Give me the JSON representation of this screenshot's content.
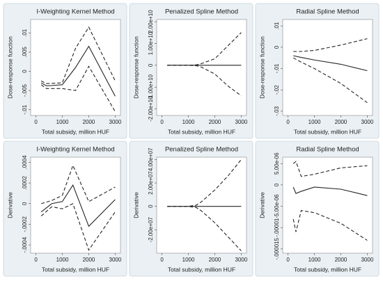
{
  "chart_data": [
    {
      "type": "line",
      "title": "I-Weighting Kernel Method",
      "ylabel": "Dose-response function",
      "xlabel": "Total subsidy, million HUF",
      "x": [
        200,
        400,
        1000,
        1500,
        2000,
        3000
      ],
      "xlim": [
        -200,
        3200
      ],
      "xticks": [
        0,
        1000,
        2000,
        3000
      ],
      "ylim": [
        -0.0115,
        0.0135
      ],
      "yticks": [
        {
          "value": -0.01,
          "label": "-.01"
        },
        {
          "value": -0.005,
          "label": "-.005"
        },
        0,
        {
          "value": 0.005,
          "label": ".005"
        },
        {
          "value": 0.01,
          "label": ".01"
        }
      ],
      "series": [
        {
          "color": "#222222",
          "style": "solid",
          "values": [
            -0.003,
            -0.0038,
            -0.0035,
            0.001,
            0.0065,
            -0.0065
          ]
        },
        {
          "color": "#222222",
          "style": "dashed",
          "values": [
            -0.0025,
            -0.0032,
            -0.003,
            0.006,
            0.0115,
            -0.0025
          ]
        },
        {
          "color": "#222222",
          "style": "dashed",
          "values": [
            -0.0035,
            -0.0045,
            -0.0045,
            -0.005,
            0.0013,
            -0.0105
          ]
        }
      ]
    },
    {
      "type": "line",
      "title": "Penalized Spline Method",
      "ylabel": "Dose-response function",
      "xlabel": "Total subsidy, million HUF",
      "x": [
        200,
        1000,
        1300,
        1500,
        2000,
        2500,
        3000
      ],
      "xlim": [
        -200,
        3200
      ],
      "xticks": [
        0,
        1000,
        2000,
        3000
      ],
      "ylim": [
        -23000000000,
        21000000000
      ],
      "yticks": [
        {
          "value": -20000000000,
          "label": "-2.00e+10"
        },
        {
          "value": -10000000000,
          "label": "-1.00e+10"
        },
        0,
        {
          "value": 10000000000,
          "label": "1.00e+10"
        },
        {
          "value": 20000000000,
          "label": "2.00e+10"
        }
      ],
      "series": [
        {
          "color": "#222222",
          "style": "solid",
          "values": [
            0,
            0,
            0,
            0,
            0,
            0,
            0
          ]
        },
        {
          "color": "#222222",
          "style": "dashed",
          "values": [
            0,
            0,
            200000000,
            800000000,
            3000000000,
            9000000000,
            15000000000
          ]
        },
        {
          "color": "#222222",
          "style": "dashed",
          "values": [
            0,
            0,
            -200000000,
            -900000000,
            -4000000000,
            -9500000000,
            -14000000000
          ]
        }
      ]
    },
    {
      "type": "line",
      "title": "Radial Spline Method",
      "ylabel": "Dose-response function",
      "xlabel": "Total subsidy, million HUF",
      "x": [
        200,
        500,
        1000,
        2000,
        3000
      ],
      "xlim": [
        -200,
        3200
      ],
      "xticks": [
        0,
        1000,
        2000,
        3000
      ],
      "ylim": [
        -0.032,
        0.013
      ],
      "yticks": [
        {
          "value": -0.03,
          "label": "-.03"
        },
        {
          "value": -0.02,
          "label": "-.02"
        },
        {
          "value": -0.01,
          "label": "-.01"
        },
        0,
        {
          "value": 0.01,
          "label": ".01"
        }
      ],
      "series": [
        {
          "color": "#222222",
          "style": "solid",
          "values": [
            -0.004,
            -0.0048,
            -0.006,
            -0.008,
            -0.011
          ]
        },
        {
          "color": "#222222",
          "style": "dashed",
          "values": [
            -0.002,
            -0.002,
            -0.0015,
            0.001,
            0.004
          ]
        },
        {
          "color": "#222222",
          "style": "dashed",
          "values": [
            -0.005,
            -0.007,
            -0.01,
            -0.017,
            -0.026
          ]
        }
      ]
    },
    {
      "type": "line",
      "title": "I-Weighting Kernel Method",
      "ylabel": "Derivative",
      "xlabel": "Total subsidy, million HUF",
      "x": [
        200,
        600,
        1000,
        1400,
        2000,
        3000
      ],
      "xlim": [
        -200,
        3200
      ],
      "xticks": [
        0,
        1000,
        2000,
        3000
      ],
      "ylim": [
        -0.00048,
        0.00045
      ],
      "yticks": [
        {
          "value": -0.0004,
          "label": "-.0004"
        },
        {
          "value": -0.0002,
          "label": "-.0002"
        },
        0,
        {
          "value": 0.0002,
          "label": ".0002"
        },
        {
          "value": 0.0004,
          "label": ".0004"
        }
      ],
      "series": [
        {
          "color": "#222222",
          "style": "solid",
          "values": [
            -8e-05,
            0,
            2e-05,
            0.00018,
            -0.00022,
            4e-05
          ]
        },
        {
          "color": "#222222",
          "style": "dashed",
          "values": [
            0,
            3e-05,
            8e-05,
            0.00037,
            2e-05,
            0.00016
          ]
        },
        {
          "color": "#222222",
          "style": "dashed",
          "values": [
            -0.00012,
            -3e-05,
            -5e-05,
            0,
            -0.00045,
            -8e-05
          ]
        }
      ]
    },
    {
      "type": "line",
      "title": "Penalized Spline Method",
      "ylabel": "Derivative",
      "xlabel": "Total subsidy, million HUF",
      "x": [
        200,
        1000,
        1300,
        1500,
        2000,
        2500,
        3000
      ],
      "xlim": [
        -200,
        3200
      ],
      "xticks": [
        0,
        1000,
        2000,
        3000
      ],
      "ylim": [
        -40000000,
        42000000
      ],
      "yticks": [
        {
          "value": -20000000,
          "label": "-2.00e+07"
        },
        0,
        {
          "value": 20000000,
          "label": "2.00e+07"
        },
        {
          "value": 40000000,
          "label": "4.00e+07"
        }
      ],
      "series": [
        {
          "color": "#222222",
          "style": "solid",
          "values": [
            0,
            0,
            0,
            0,
            0,
            0,
            0
          ]
        },
        {
          "color": "#222222",
          "style": "dashed",
          "values": [
            0,
            0,
            1000000,
            4000000,
            14000000,
            26000000,
            40000000
          ]
        },
        {
          "color": "#222222",
          "style": "dashed",
          "values": [
            0,
            0,
            -1000000,
            -4000000,
            -14000000,
            -26000000,
            -38000000
          ]
        }
      ]
    },
    {
      "type": "line",
      "title": "Radial Spline Method",
      "ylabel": "Derivative",
      "xlabel": "Total subsidy, million HUF",
      "x": [
        200,
        300,
        500,
        1000,
        2000,
        3000
      ],
      "xlim": [
        -200,
        3200
      ],
      "xticks": [
        0,
        1000,
        2000,
        3000
      ],
      "ylim": [
        -1.6e-05,
        6.5e-06
      ],
      "yticks": [
        {
          "value": -1.5e-05,
          "label": "-.000015"
        },
        {
          "value": -1e-05,
          "label": "-.00001"
        },
        {
          "value": -5e-06,
          "label": "-5.00e-06"
        },
        0,
        {
          "value": 5e-06,
          "label": "5.00e-06"
        }
      ],
      "series": [
        {
          "color": "#222222",
          "style": "solid",
          "values": [
            -5e-07,
            -2e-06,
            -1.5e-06,
            -5e-07,
            -1e-06,
            -2.5e-06
          ]
        },
        {
          "color": "#222222",
          "style": "dashed",
          "values": [
            5e-06,
            5.5e-06,
            2e-06,
            2.5e-06,
            4e-06,
            4.5e-06
          ]
        },
        {
          "color": "#222222",
          "style": "dashed",
          "values": [
            -8e-06,
            -1.1e-05,
            -6e-06,
            -6.5e-06,
            -9e-06,
            -1.3e-05
          ]
        }
      ]
    }
  ]
}
